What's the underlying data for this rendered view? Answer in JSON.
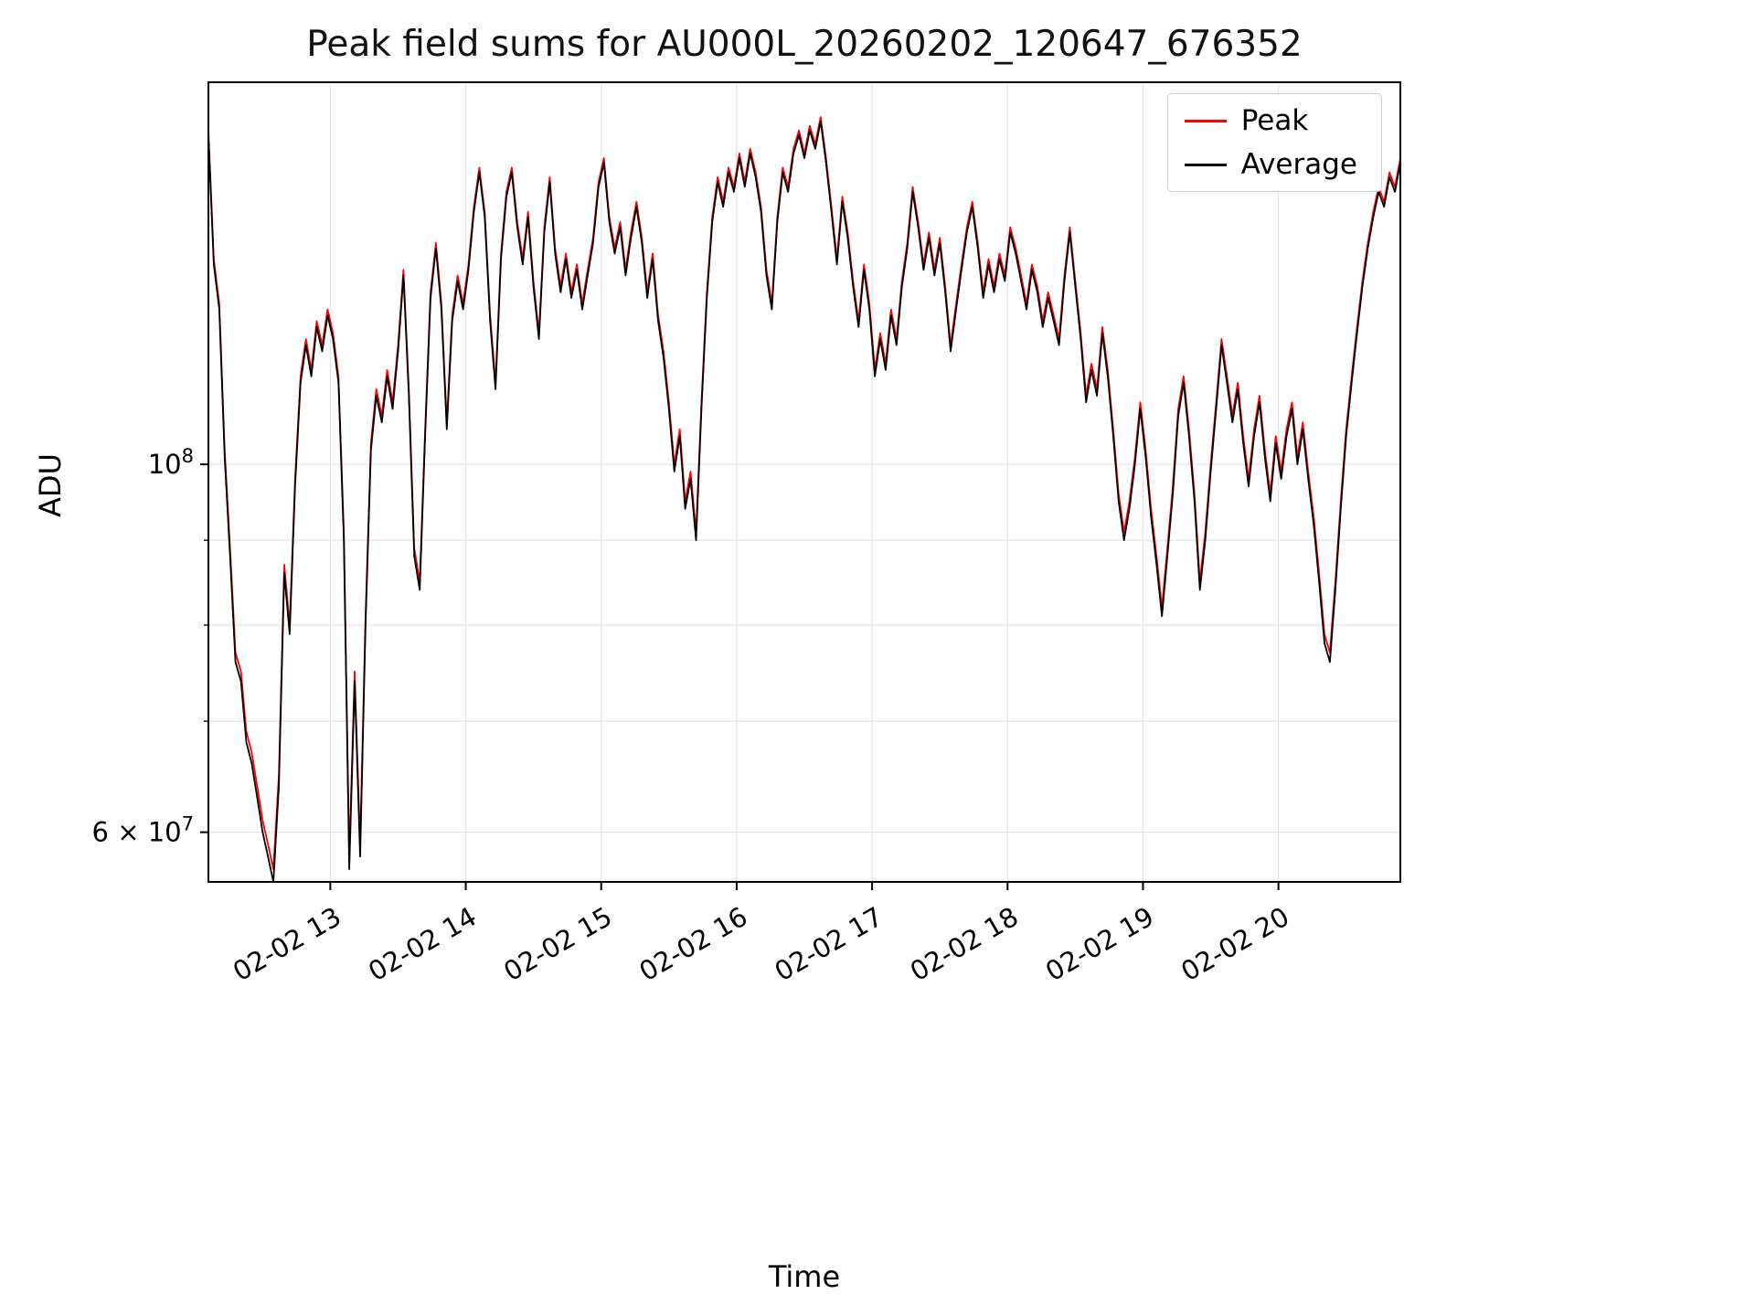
{
  "figure": {
    "background": "#ffffff"
  },
  "chart_data": {
    "type": "line",
    "title": "Peak field sums for AU000L_20260202_120647_676352",
    "xlabel": "Time",
    "ylabel": "ADU",
    "y_scale": "log",
    "grid": true,
    "grid_color": "#e6e6e6",
    "ylim_adu": [
      56000000,
      170000000
    ],
    "xlim_hours": [
      12.1,
      20.9
    ],
    "x_hours_start": 12.1,
    "x_hours_step": 0.04,
    "x_tick_hours": [
      13,
      14,
      15,
      16,
      17,
      18,
      19,
      20
    ],
    "x_tick_labels": [
      "02-02 13",
      "02-02 14",
      "02-02 15",
      "02-02 16",
      "02-02 17",
      "02-02 18",
      "02-02 19",
      "02-02 20"
    ],
    "y_major_ticks": [
      {
        "value": 100000000,
        "base": "10",
        "exp": "8"
      },
      {
        "value": 60000000,
        "base": "6 × 10",
        "exp": "7"
      }
    ],
    "y_minor_tick_values": [
      70000000,
      80000000,
      90000000
    ],
    "y_gridline_values": [
      60000000,
      70000000,
      80000000,
      90000000,
      100000000
    ],
    "legend": {
      "loc": "upper right",
      "entries": [
        "Peak",
        "Average"
      ]
    },
    "series": [
      {
        "name": "Peak",
        "color": "#ff0000",
        "values_adu_1e6": [
          159,
          133,
          125,
          102,
          89,
          77,
          75,
          69,
          67,
          64,
          61,
          59,
          57,
          65,
          87,
          80,
          98,
          113,
          119,
          114,
          122,
          118,
          124,
          120,
          113,
          91,
          58,
          75,
          59,
          81,
          103,
          111,
          107,
          114,
          109,
          118,
          131,
          111,
          89,
          85,
          105,
          127,
          136,
          125,
          106,
          123,
          130,
          125,
          132,
          143,
          151,
          142,
          123,
          112,
          134,
          146,
          151,
          140,
          133,
          142,
          129,
          120,
          139,
          149,
          135,
          128,
          134,
          127,
          132,
          125,
          131,
          137,
          148,
          153,
          141,
          135,
          140,
          131,
          138,
          144,
          137,
          127,
          134,
          123,
          117,
          109,
          100,
          105,
          95,
          99,
          91,
          109,
          127,
          141,
          149,
          144,
          151,
          147,
          154,
          148,
          155,
          150,
          143,
          131,
          125,
          141,
          151,
          147,
          155,
          159,
          154,
          160,
          156,
          162,
          153,
          143,
          133,
          145,
          138,
          129,
          122,
          132,
          125,
          114,
          120,
          115,
          124,
          119,
          129,
          136,
          147,
          140,
          132,
          138,
          131,
          137,
          128,
          118,
          125,
          132,
          139,
          144,
          136,
          127,
          133,
          128,
          134,
          130,
          139,
          135,
          130,
          125,
          132,
          128,
          122,
          127,
          123,
          119,
          130,
          139,
          129,
          120,
          110,
          115,
          111,
          121,
          114,
          105,
          96,
          91,
          95,
          101,
          109,
          102,
          94,
          88,
          82,
          89,
          97,
          108,
          113,
          105,
          96,
          85,
          91,
          100,
          109,
          119,
          113,
          107,
          112,
          104,
          98,
          105,
          110,
          102,
          96,
          104,
          99,
          105,
          109,
          101,
          106,
          99,
          93,
          86,
          79,
          77,
          85,
          95,
          105,
          113,
          121,
          129,
          136,
          142,
          147,
          144,
          150,
          147,
          153
        ]
      },
      {
        "name": "Average",
        "color": "#000000",
        "values_adu_1e6": [
          158,
          132,
          124,
          101,
          88,
          76,
          74,
          68,
          66,
          63,
          60,
          58,
          56,
          64,
          86,
          79,
          97,
          112,
          118,
          113,
          121,
          117,
          123,
          119,
          112,
          90,
          57,
          74,
          58,
          80,
          102,
          110,
          106,
          113,
          108,
          117,
          130,
          110,
          88,
          84,
          104,
          126,
          135,
          124,
          105,
          122,
          129,
          124,
          131,
          142,
          150,
          141,
          122,
          111,
          133,
          145,
          150,
          139,
          132,
          141,
          128,
          119,
          138,
          148,
          134,
          127,
          133,
          126,
          131,
          124,
          130,
          136,
          147,
          152,
          140,
          134,
          139,
          130,
          137,
          143,
          136,
          126,
          133,
          122,
          116,
          108,
          99,
          104,
          94,
          98,
          90,
          108,
          126,
          140,
          148,
          143,
          150,
          146,
          153,
          147,
          154,
          149,
          142,
          130,
          124,
          140,
          150,
          146,
          154,
          158,
          153,
          159,
          155,
          161,
          152,
          142,
          132,
          144,
          137,
          128,
          121,
          131,
          124,
          113,
          119,
          114,
          123,
          118,
          128,
          135,
          146,
          139,
          131,
          137,
          130,
          136,
          127,
          117,
          124,
          131,
          138,
          143,
          135,
          126,
          132,
          127,
          133,
          129,
          138,
          134,
          129,
          124,
          131,
          127,
          121,
          126,
          122,
          118,
          129,
          138,
          128,
          119,
          109,
          114,
          110,
          120,
          113,
          104,
          95,
          90,
          94,
          100,
          108,
          101,
          93,
          87,
          81,
          88,
          96,
          107,
          112,
          104,
          95,
          84,
          90,
          99,
          108,
          118,
          112,
          106,
          111,
          103,
          97,
          104,
          109,
          101,
          95,
          103,
          98,
          104,
          108,
          100,
          105,
          98,
          92,
          85,
          78,
          76,
          84,
          94,
          104,
          112,
          120,
          128,
          135,
          141,
          146,
          143,
          149,
          146,
          152
        ]
      }
    ]
  }
}
